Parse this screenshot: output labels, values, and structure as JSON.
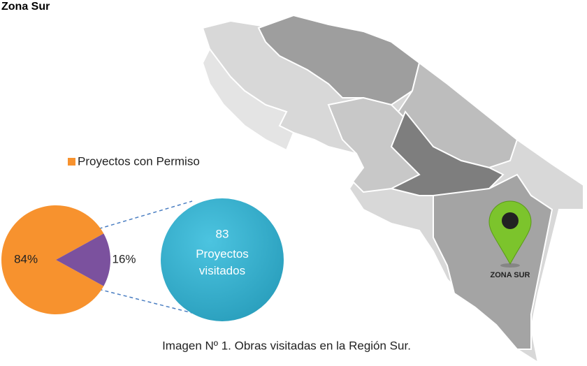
{
  "title": "Zona Sur",
  "map_label": "ZONA SUR",
  "caption": "Imagen Nº 1. Obras visitadas en la Región Sur.",
  "callout": {
    "value": 83,
    "label": "Proyectos visitados"
  },
  "chart_data": {
    "type": "pie",
    "categories": [
      "Proyectos con Permiso",
      null
    ],
    "values": [
      84,
      16
    ],
    "value_labels": [
      "84%",
      "16%"
    ],
    "colors": [
      "#f7922e",
      "#7b519e"
    ],
    "legend": "top"
  }
}
